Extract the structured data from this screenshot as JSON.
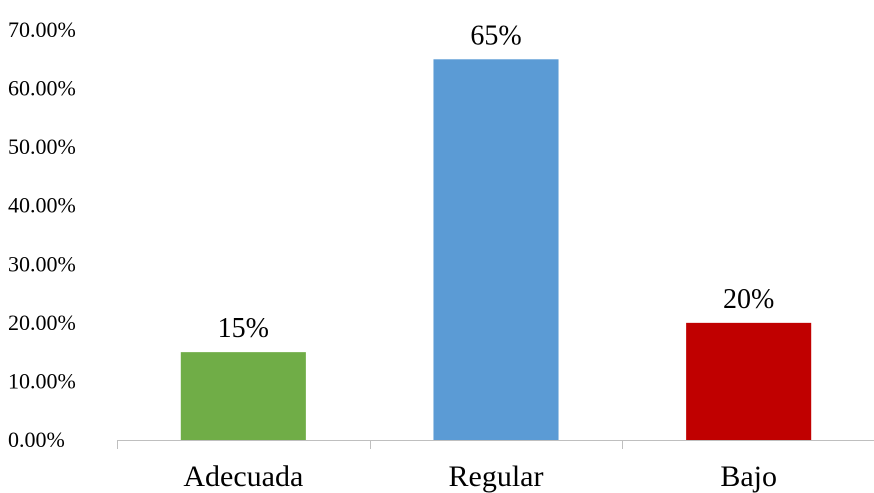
{
  "chart_data": {
    "type": "bar",
    "title": "",
    "xlabel": "",
    "ylabel": "",
    "categories": [
      "Adecuada",
      "Regular",
      "Bajo"
    ],
    "values": [
      15,
      65,
      20
    ],
    "data_labels": [
      "15%",
      "65%",
      "20%"
    ],
    "bar_colors": [
      "#70ad47",
      "#5b9bd5",
      "#c00000"
    ],
    "ylim": [
      0,
      70
    ],
    "yticks": [
      0,
      10,
      20,
      30,
      40,
      50,
      60,
      70
    ],
    "ytick_labels": [
      "0.00%",
      "10.00%",
      "20.00%",
      "30.00%",
      "40.00%",
      "50.00%",
      "60.00%",
      "70.00%"
    ],
    "grid": false,
    "legend": "none"
  }
}
